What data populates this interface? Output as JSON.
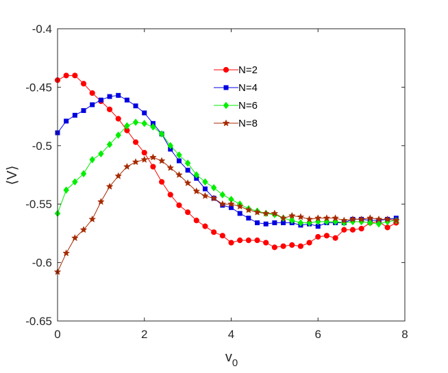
{
  "chart_data": {
    "type": "line",
    "title": "",
    "xlabel": "v",
    "xlabel_subscript": "0",
    "ylabel": "⟨V⟩",
    "xlim": [
      0,
      8
    ],
    "ylim": [
      -0.65,
      -0.4
    ],
    "xticks": [
      0,
      2,
      4,
      6,
      8
    ],
    "xtick_labels": [
      "0",
      "2",
      "4",
      "6",
      "8"
    ],
    "yticks": [
      -0.65,
      -0.6,
      -0.55,
      -0.5,
      -0.45,
      -0.4
    ],
    "ytick_labels": [
      "-0.65",
      "-0.6",
      "-0.55",
      "-0.5",
      "-0.45",
      "-0.4"
    ],
    "grid": false,
    "legend_position": "top-center",
    "x": [
      0,
      0.2,
      0.4,
      0.6,
      0.8,
      1.0,
      1.2,
      1.4,
      1.6,
      1.8,
      2.0,
      2.2,
      2.4,
      2.6,
      2.8,
      3.0,
      3.2,
      3.4,
      3.6,
      3.8,
      4.0,
      4.2,
      4.4,
      4.6,
      4.8,
      5.0,
      5.2,
      5.4,
      5.6,
      5.8,
      6.0,
      6.2,
      6.4,
      6.6,
      6.8,
      7.0,
      7.2,
      7.4,
      7.6,
      7.8
    ],
    "series": [
      {
        "name": "N=2",
        "color": "#ff0000",
        "marker": "circle",
        "values": [
          -0.444,
          -0.44,
          -0.44,
          -0.447,
          -0.455,
          -0.462,
          -0.469,
          -0.477,
          -0.487,
          -0.497,
          -0.506,
          -0.518,
          -0.531,
          -0.542,
          -0.551,
          -0.557,
          -0.564,
          -0.569,
          -0.574,
          -0.577,
          -0.583,
          -0.581,
          -0.581,
          -0.581,
          -0.583,
          -0.587,
          -0.586,
          -0.585,
          -0.586,
          -0.583,
          -0.578,
          -0.577,
          -0.579,
          -0.572,
          -0.572,
          -0.571,
          -0.566,
          -0.565,
          -0.57,
          -0.566
        ]
      },
      {
        "name": "N=4",
        "color": "#0000e0",
        "marker": "square",
        "values": [
          -0.489,
          -0.479,
          -0.474,
          -0.47,
          -0.465,
          -0.461,
          -0.458,
          -0.457,
          -0.461,
          -0.466,
          -0.472,
          -0.481,
          -0.49,
          -0.503,
          -0.513,
          -0.521,
          -0.528,
          -0.537,
          -0.545,
          -0.551,
          -0.553,
          -0.558,
          -0.562,
          -0.566,
          -0.567,
          -0.566,
          -0.566,
          -0.566,
          -0.568,
          -0.567,
          -0.569,
          -0.566,
          -0.566,
          -0.566,
          -0.563,
          -0.563,
          -0.564,
          -0.564,
          -0.563,
          -0.562
        ]
      },
      {
        "name": "N=6",
        "color": "#00ee00",
        "marker": "diamond",
        "values": [
          -0.558,
          -0.538,
          -0.531,
          -0.524,
          -0.512,
          -0.507,
          -0.499,
          -0.491,
          -0.483,
          -0.48,
          -0.481,
          -0.484,
          -0.49,
          -0.5,
          -0.508,
          -0.515,
          -0.525,
          -0.531,
          -0.536,
          -0.542,
          -0.546,
          -0.55,
          -0.554,
          -0.556,
          -0.558,
          -0.559,
          -0.562,
          -0.564,
          -0.566,
          -0.566,
          -0.565,
          -0.565,
          -0.565,
          -0.566,
          -0.565,
          -0.565,
          -0.566,
          -0.567,
          -0.565,
          -0.564
        ]
      },
      {
        "name": "N=8",
        "color": "#a52a00",
        "marker": "star",
        "values": [
          -0.608,
          -0.592,
          -0.579,
          -0.572,
          -0.563,
          -0.548,
          -0.535,
          -0.526,
          -0.518,
          -0.514,
          -0.512,
          -0.51,
          -0.513,
          -0.519,
          -0.525,
          -0.532,
          -0.539,
          -0.543,
          -0.545,
          -0.55,
          -0.55,
          -0.552,
          -0.555,
          -0.557,
          -0.558,
          -0.558,
          -0.562,
          -0.56,
          -0.561,
          -0.563,
          -0.562,
          -0.562,
          -0.562,
          -0.564,
          -0.563,
          -0.563,
          -0.562,
          -0.563,
          -0.563,
          -0.564
        ]
      }
    ]
  }
}
